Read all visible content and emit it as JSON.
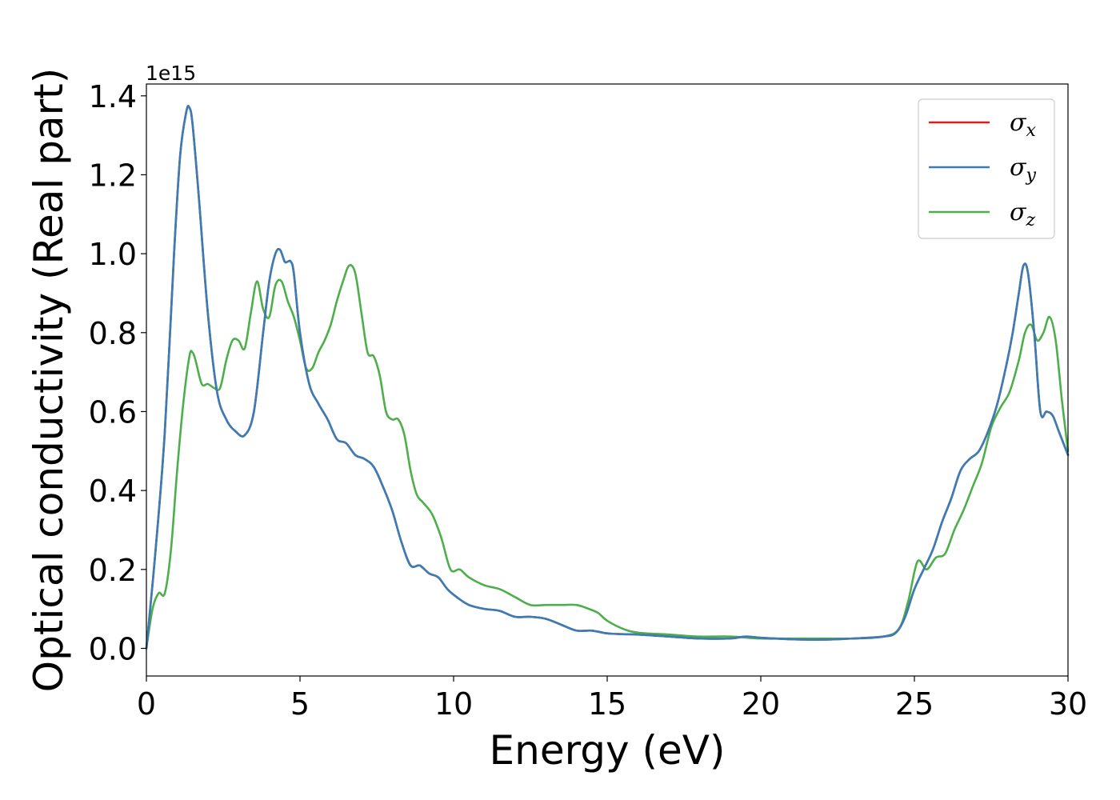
{
  "chart_data": {
    "type": "line",
    "xlabel": "Energy (eV)",
    "ylabel": "Optical conductivity (Real part)",
    "y_offset_label": "1e15",
    "y_scale": 1000000000000000.0,
    "xlim": [
      0,
      30
    ],
    "ylim": [
      -0.07,
      1.43
    ],
    "xticks": [
      0,
      5,
      10,
      15,
      20,
      25,
      30
    ],
    "xtick_labels": [
      "0",
      "5",
      "10",
      "15",
      "20",
      "25",
      "30"
    ],
    "yticks": [
      0.0,
      0.2,
      0.4,
      0.6,
      0.8,
      1.0,
      1.2,
      1.4
    ],
    "ytick_labels": [
      "0.0",
      "0.2",
      "0.4",
      "0.6",
      "0.8",
      "1.0",
      "1.2",
      "1.4"
    ],
    "grid": false,
    "legend_position": "top-right",
    "series": [
      {
        "name": "σx",
        "legend_base": "σ",
        "legend_sub": "x",
        "color": "#e41a1c",
        "x": [
          0,
          0.3,
          0.6,
          0.9,
          1.1,
          1.3,
          1.4,
          1.5,
          1.7,
          2.0,
          2.3,
          2.6,
          2.9,
          3.2,
          3.5,
          3.8,
          4.0,
          4.2,
          4.35,
          4.5,
          4.6,
          4.7,
          4.8,
          5.0,
          5.3,
          5.6,
          5.9,
          6.2,
          6.5,
          6.8,
          7.1,
          7.4,
          7.7,
          8.0,
          8.3,
          8.6,
          8.9,
          9.2,
          9.5,
          9.8,
          10.1,
          10.5,
          11.0,
          11.5,
          12.0,
          12.5,
          13.0,
          13.5,
          14.0,
          14.5,
          15.0,
          15.5,
          16.0,
          17.0,
          18.0,
          19.0,
          19.5,
          20.0,
          21.0,
          22.0,
          23.0,
          24.0,
          24.4,
          24.7,
          25.0,
          25.3,
          25.6,
          25.9,
          26.2,
          26.5,
          26.8,
          27.1,
          27.4,
          27.7,
          28.0,
          28.2,
          28.4,
          28.55,
          28.7,
          28.9,
          29.1,
          29.3,
          29.5,
          29.7,
          29.9,
          30.0
        ],
        "y": [
          0.0,
          0.25,
          0.55,
          1.0,
          1.25,
          1.36,
          1.37,
          1.33,
          1.15,
          0.85,
          0.65,
          0.58,
          0.55,
          0.54,
          0.6,
          0.8,
          0.93,
          1.0,
          1.01,
          0.98,
          0.98,
          0.98,
          0.95,
          0.8,
          0.67,
          0.62,
          0.58,
          0.53,
          0.52,
          0.49,
          0.48,
          0.46,
          0.41,
          0.35,
          0.27,
          0.21,
          0.21,
          0.19,
          0.18,
          0.15,
          0.13,
          0.11,
          0.1,
          0.095,
          0.08,
          0.08,
          0.075,
          0.06,
          0.045,
          0.045,
          0.038,
          0.036,
          0.035,
          0.03,
          0.025,
          0.025,
          0.03,
          0.027,
          0.023,
          0.022,
          0.025,
          0.03,
          0.04,
          0.08,
          0.15,
          0.2,
          0.25,
          0.32,
          0.38,
          0.45,
          0.48,
          0.5,
          0.55,
          0.62,
          0.72,
          0.8,
          0.9,
          0.97,
          0.95,
          0.8,
          0.6,
          0.6,
          0.59,
          0.55,
          0.51,
          0.49
        ]
      },
      {
        "name": "σy",
        "legend_base": "σ",
        "legend_sub": "y",
        "color": "#377eb8",
        "x": [
          0,
          0.3,
          0.6,
          0.9,
          1.1,
          1.3,
          1.4,
          1.5,
          1.7,
          2.0,
          2.3,
          2.6,
          2.9,
          3.2,
          3.5,
          3.8,
          4.0,
          4.2,
          4.35,
          4.5,
          4.6,
          4.7,
          4.8,
          5.0,
          5.3,
          5.6,
          5.9,
          6.2,
          6.5,
          6.8,
          7.1,
          7.4,
          7.7,
          8.0,
          8.3,
          8.6,
          8.9,
          9.2,
          9.5,
          9.8,
          10.1,
          10.5,
          11.0,
          11.5,
          12.0,
          12.5,
          13.0,
          13.5,
          14.0,
          14.5,
          15.0,
          15.5,
          16.0,
          17.0,
          18.0,
          19.0,
          19.5,
          20.0,
          21.0,
          22.0,
          23.0,
          24.0,
          24.4,
          24.7,
          25.0,
          25.3,
          25.6,
          25.9,
          26.2,
          26.5,
          26.8,
          27.1,
          27.4,
          27.7,
          28.0,
          28.2,
          28.4,
          28.55,
          28.7,
          28.9,
          29.1,
          29.3,
          29.5,
          29.7,
          29.9,
          30.0
        ],
        "y": [
          0.0,
          0.25,
          0.55,
          1.0,
          1.25,
          1.36,
          1.37,
          1.33,
          1.15,
          0.85,
          0.65,
          0.58,
          0.55,
          0.54,
          0.6,
          0.8,
          0.93,
          1.0,
          1.01,
          0.98,
          0.98,
          0.98,
          0.95,
          0.8,
          0.67,
          0.62,
          0.58,
          0.53,
          0.52,
          0.49,
          0.48,
          0.46,
          0.41,
          0.35,
          0.27,
          0.21,
          0.21,
          0.19,
          0.18,
          0.15,
          0.13,
          0.11,
          0.1,
          0.095,
          0.08,
          0.08,
          0.075,
          0.06,
          0.045,
          0.045,
          0.038,
          0.036,
          0.035,
          0.03,
          0.025,
          0.025,
          0.03,
          0.027,
          0.023,
          0.022,
          0.025,
          0.03,
          0.04,
          0.08,
          0.15,
          0.2,
          0.25,
          0.32,
          0.38,
          0.45,
          0.48,
          0.5,
          0.55,
          0.62,
          0.72,
          0.8,
          0.9,
          0.97,
          0.95,
          0.8,
          0.6,
          0.6,
          0.59,
          0.55,
          0.51,
          0.49
        ]
      },
      {
        "name": "σz",
        "legend_base": "σ",
        "legend_sub": "z",
        "color": "#4daf4a",
        "x": [
          0,
          0.2,
          0.4,
          0.6,
          0.8,
          1.0,
          1.2,
          1.4,
          1.5,
          1.6,
          1.8,
          2.0,
          2.2,
          2.4,
          2.6,
          2.8,
          3.0,
          3.2,
          3.4,
          3.6,
          3.8,
          4.0,
          4.2,
          4.4,
          4.6,
          4.8,
          5.0,
          5.2,
          5.4,
          5.6,
          5.8,
          6.0,
          6.2,
          6.4,
          6.6,
          6.8,
          7.0,
          7.2,
          7.4,
          7.6,
          7.8,
          8.0,
          8.2,
          8.4,
          8.6,
          8.8,
          9.0,
          9.3,
          9.6,
          9.9,
          10.2,
          10.5,
          11.0,
          11.5,
          12.0,
          12.5,
          13.0,
          13.5,
          14.0,
          14.4,
          14.7,
          15.0,
          15.5,
          16.0,
          17.0,
          18.0,
          19.0,
          20.0,
          21.0,
          22.0,
          23.0,
          24.0,
          24.5,
          24.8,
          25.1,
          25.4,
          25.7,
          26.0,
          26.3,
          26.6,
          26.9,
          27.2,
          27.5,
          27.8,
          28.1,
          28.4,
          28.6,
          28.8,
          29.0,
          29.2,
          29.4,
          29.6,
          29.8,
          30.0
        ],
        "y": [
          0.0,
          0.1,
          0.14,
          0.14,
          0.25,
          0.45,
          0.62,
          0.74,
          0.75,
          0.73,
          0.67,
          0.67,
          0.66,
          0.66,
          0.73,
          0.78,
          0.78,
          0.76,
          0.85,
          0.93,
          0.86,
          0.84,
          0.92,
          0.93,
          0.88,
          0.84,
          0.78,
          0.71,
          0.71,
          0.75,
          0.78,
          0.82,
          0.88,
          0.93,
          0.97,
          0.95,
          0.85,
          0.75,
          0.74,
          0.69,
          0.6,
          0.58,
          0.58,
          0.54,
          0.45,
          0.39,
          0.37,
          0.34,
          0.28,
          0.2,
          0.2,
          0.18,
          0.16,
          0.15,
          0.13,
          0.11,
          0.11,
          0.11,
          0.11,
          0.1,
          0.09,
          0.07,
          0.05,
          0.04,
          0.035,
          0.03,
          0.03,
          0.025,
          0.025,
          0.025,
          0.025,
          0.03,
          0.05,
          0.12,
          0.22,
          0.2,
          0.23,
          0.24,
          0.3,
          0.35,
          0.41,
          0.47,
          0.56,
          0.61,
          0.65,
          0.73,
          0.8,
          0.82,
          0.78,
          0.8,
          0.84,
          0.78,
          0.63,
          0.5
        ]
      }
    ]
  }
}
